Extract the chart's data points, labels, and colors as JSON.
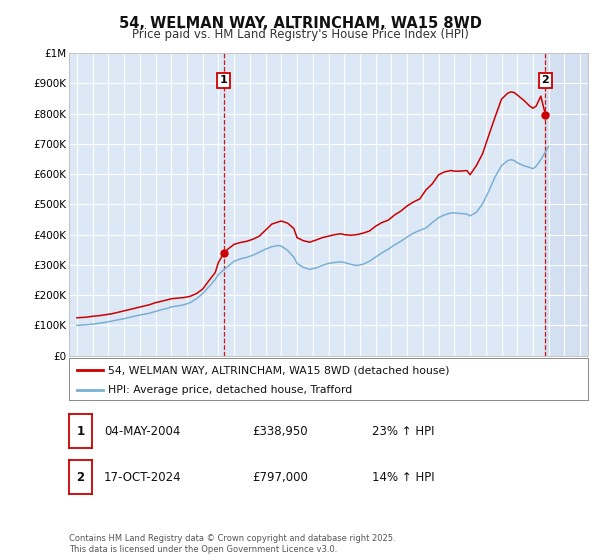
{
  "title": "54, WELMAN WAY, ALTRINCHAM, WA15 8WD",
  "subtitle": "Price paid vs. HM Land Registry's House Price Index (HPI)",
  "ylim": [
    0,
    1000000
  ],
  "yticks": [
    0,
    100000,
    200000,
    300000,
    400000,
    500000,
    600000,
    700000,
    800000,
    900000,
    1000000
  ],
  "ytick_labels": [
    "£0",
    "£100K",
    "£200K",
    "£300K",
    "£400K",
    "£500K",
    "£600K",
    "£700K",
    "£800K",
    "£900K",
    "£1M"
  ],
  "xlim_start": 1994.5,
  "xlim_end": 2027.5,
  "xticks": [
    1995,
    1996,
    1997,
    1998,
    1999,
    2000,
    2001,
    2002,
    2003,
    2004,
    2005,
    2006,
    2007,
    2008,
    2009,
    2010,
    2011,
    2012,
    2013,
    2014,
    2015,
    2016,
    2017,
    2018,
    2019,
    2020,
    2021,
    2022,
    2023,
    2024,
    2025,
    2026,
    2027
  ],
  "fig_bg_color": "#ffffff",
  "plot_bg_color": "#dce8f5",
  "grid_color": "#ffffff",
  "red_line_color": "#cc0000",
  "blue_line_color": "#7ab0d4",
  "marker1_date": 2004.34,
  "marker1_value": 338950,
  "marker2_date": 2024.79,
  "marker2_value": 797000,
  "legend_label_red": "54, WELMAN WAY, ALTRINCHAM, WA15 8WD (detached house)",
  "legend_label_blue": "HPI: Average price, detached house, Trafford",
  "annotation1_label": "1",
  "annotation2_label": "2",
  "table_row1": [
    "1",
    "04-MAY-2004",
    "£338,950",
    "23% ↑ HPI"
  ],
  "table_row2": [
    "2",
    "17-OCT-2024",
    "£797,000",
    "14% ↑ HPI"
  ],
  "footer": "Contains HM Land Registry data © Crown copyright and database right 2025.\nThis data is licensed under the Open Government Licence v3.0.",
  "red_x": [
    1995.0,
    1995.3,
    1995.6,
    1996.0,
    1996.4,
    1996.8,
    1997.2,
    1997.6,
    1998.0,
    1998.4,
    1998.8,
    1999.2,
    1999.6,
    2000.0,
    2000.4,
    2000.8,
    2001.0,
    2001.4,
    2001.8,
    2002.2,
    2002.6,
    2003.0,
    2003.4,
    2003.8,
    2004.0,
    2004.34,
    2004.6,
    2005.0,
    2005.4,
    2005.8,
    2006.2,
    2006.6,
    2007.0,
    2007.4,
    2007.8,
    2008.0,
    2008.4,
    2008.8,
    2009.0,
    2009.4,
    2009.8,
    2010.2,
    2010.6,
    2011.0,
    2011.4,
    2011.8,
    2012.0,
    2012.4,
    2012.8,
    2013.2,
    2013.6,
    2014.0,
    2014.4,
    2014.8,
    2015.2,
    2015.6,
    2016.0,
    2016.4,
    2016.8,
    2017.2,
    2017.6,
    2018.0,
    2018.4,
    2018.8,
    2019.0,
    2019.4,
    2019.8,
    2020.0,
    2020.4,
    2020.8,
    2021.2,
    2021.6,
    2022.0,
    2022.4,
    2022.6,
    2022.8,
    2023.0,
    2023.4,
    2023.8,
    2024.0,
    2024.2,
    2024.5,
    2024.79,
    2025.0
  ],
  "red_y": [
    125000,
    126000,
    127000,
    130000,
    132000,
    135000,
    138000,
    143000,
    148000,
    153000,
    158000,
    163000,
    168000,
    175000,
    180000,
    185000,
    188000,
    190000,
    192000,
    196000,
    205000,
    220000,
    248000,
    275000,
    308000,
    338950,
    352000,
    368000,
    374000,
    378000,
    385000,
    395000,
    415000,
    435000,
    442000,
    445000,
    438000,
    420000,
    390000,
    380000,
    375000,
    382000,
    390000,
    395000,
    400000,
    403000,
    400000,
    398000,
    400000,
    405000,
    412000,
    428000,
    440000,
    448000,
    465000,
    478000,
    495000,
    508000,
    518000,
    548000,
    568000,
    598000,
    608000,
    612000,
    610000,
    610000,
    612000,
    598000,
    628000,
    668000,
    730000,
    790000,
    848000,
    868000,
    872000,
    870000,
    862000,
    845000,
    825000,
    818000,
    825000,
    858000,
    797000,
    800000
  ],
  "blue_x": [
    1995.0,
    1995.3,
    1995.6,
    1996.0,
    1996.4,
    1996.8,
    1997.2,
    1997.6,
    1998.0,
    1998.4,
    1998.8,
    1999.2,
    1999.6,
    2000.0,
    2000.4,
    2000.8,
    2001.0,
    2001.4,
    2001.8,
    2002.2,
    2002.6,
    2003.0,
    2003.4,
    2003.8,
    2004.0,
    2004.6,
    2005.0,
    2005.4,
    2005.8,
    2006.2,
    2006.6,
    2007.0,
    2007.4,
    2007.8,
    2008.0,
    2008.4,
    2008.8,
    2009.0,
    2009.4,
    2009.8,
    2010.2,
    2010.6,
    2011.0,
    2011.4,
    2011.8,
    2012.0,
    2012.4,
    2012.8,
    2013.2,
    2013.6,
    2014.0,
    2014.4,
    2014.8,
    2015.2,
    2015.6,
    2016.0,
    2016.4,
    2016.8,
    2017.2,
    2017.6,
    2018.0,
    2018.4,
    2018.8,
    2019.0,
    2019.4,
    2019.8,
    2020.0,
    2020.4,
    2020.8,
    2021.2,
    2021.6,
    2022.0,
    2022.4,
    2022.6,
    2022.8,
    2023.0,
    2023.4,
    2023.8,
    2024.0,
    2024.2,
    2024.5,
    2025.0
  ],
  "blue_y": [
    100000,
    101000,
    102000,
    104000,
    107000,
    110000,
    114000,
    118000,
    122000,
    127000,
    132000,
    136000,
    140000,
    146000,
    152000,
    157000,
    161000,
    164000,
    168000,
    175000,
    188000,
    205000,
    228000,
    252000,
    268000,
    295000,
    312000,
    320000,
    325000,
    332000,
    342000,
    352000,
    360000,
    364000,
    362000,
    348000,
    325000,
    305000,
    292000,
    285000,
    290000,
    298000,
    305000,
    308000,
    310000,
    308000,
    302000,
    298000,
    302000,
    312000,
    326000,
    340000,
    352000,
    366000,
    378000,
    392000,
    405000,
    414000,
    422000,
    440000,
    456000,
    466000,
    472000,
    472000,
    470000,
    468000,
    462000,
    474000,
    502000,
    545000,
    592000,
    628000,
    645000,
    648000,
    645000,
    638000,
    628000,
    622000,
    618000,
    626000,
    648000,
    692000
  ]
}
